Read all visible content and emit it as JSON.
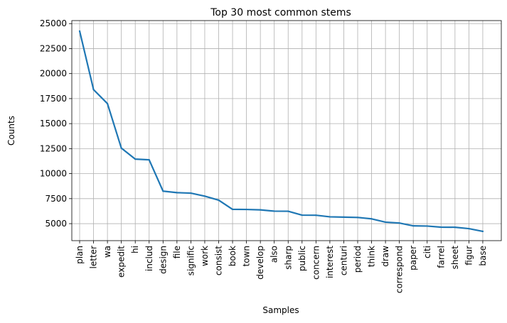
{
  "chart_data": {
    "type": "line",
    "title": "Top 30 most common stems",
    "xlabel": "Samples",
    "ylabel": "Counts",
    "categories": [
      "plan",
      "letter",
      "wa",
      "expedit",
      "hi",
      "includ",
      "design",
      "file",
      "signific",
      "work",
      "consist",
      "book",
      "town",
      "develop",
      "also",
      "sharp",
      "public",
      "concern",
      "interest",
      "centuri",
      "period",
      "think",
      "draw",
      "correspond",
      "paper",
      "citi",
      "farrel",
      "sheet",
      "figur",
      "base"
    ],
    "values": [
      24250,
      18400,
      17000,
      12550,
      11450,
      11380,
      8250,
      8100,
      8050,
      7750,
      7350,
      6430,
      6420,
      6380,
      6250,
      6240,
      5850,
      5840,
      5680,
      5650,
      5620,
      5480,
      5150,
      5060,
      4780,
      4760,
      4650,
      4640,
      4500,
      4230
    ],
    "yticks": [
      5000,
      7500,
      10000,
      12500,
      15000,
      17500,
      20000,
      22500,
      25000
    ],
    "ylim": [
      3300,
      25300
    ],
    "grid": true,
    "color": "#1f77b4"
  }
}
